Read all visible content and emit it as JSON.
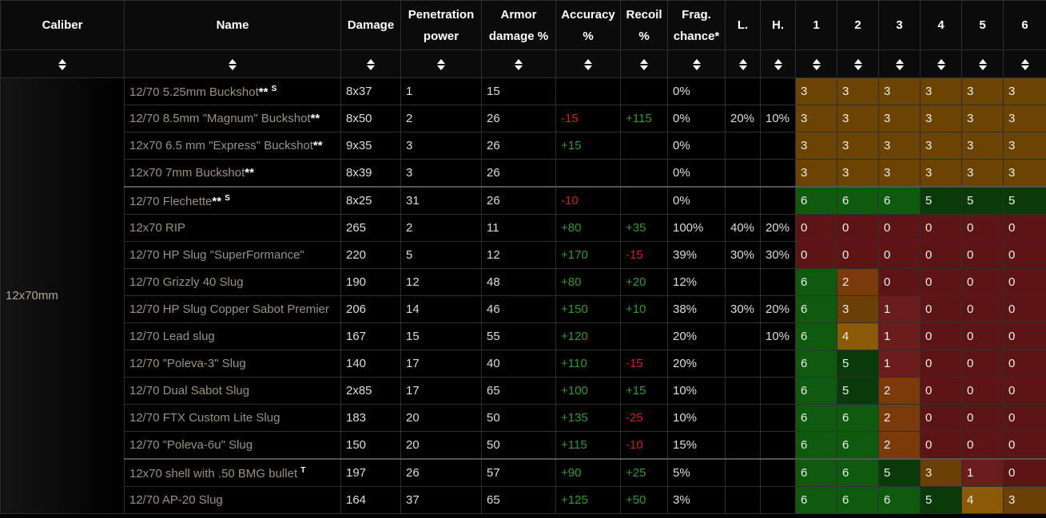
{
  "headers": {
    "caliber": "Caliber",
    "name": "Name",
    "damage": "Damage",
    "penetration": "Penetration power",
    "armor": "Armor damage %",
    "accuracy": "Accuracy %",
    "recoil": "Recoil %",
    "frag": "Frag. chance*",
    "light": "L.",
    "heavy": "H.",
    "c1": "1",
    "c2": "2",
    "c3": "3",
    "c4": "4",
    "c5": "5",
    "c6": "6"
  },
  "caliber": "12x70mm",
  "rows": [
    {
      "name": "12/70 5.25mm Buckshot",
      "mark": "**",
      "sup": "S",
      "damage": "8x37",
      "pen": "1",
      "armor": "15",
      "acc": "",
      "rec": "",
      "frag": "0%",
      "l": "",
      "h": "",
      "cls": [
        "3",
        "3",
        "3",
        "3",
        "3",
        "3"
      ]
    },
    {
      "name": "12/70 8.5mm \"Magnum\" Buckshot",
      "mark": "**",
      "sup": "",
      "damage": "8x50",
      "pen": "2",
      "armor": "26",
      "acc": "-15",
      "rec": "+115",
      "frag": "0%",
      "l": "20%",
      "h": "10%",
      "cls": [
        "3",
        "3",
        "3",
        "3",
        "3",
        "3"
      ]
    },
    {
      "name": "12x70 6.5 mm \"Express\" Buckshot",
      "mark": "**",
      "sup": "",
      "damage": "9x35",
      "pen": "3",
      "armor": "26",
      "acc": "+15",
      "rec": "",
      "frag": "0%",
      "l": "",
      "h": "",
      "cls": [
        "3",
        "3",
        "3",
        "3",
        "3",
        "3"
      ]
    },
    {
      "name": "12x70 7mm Buckshot",
      "mark": "**",
      "sup": "",
      "damage": "8x39",
      "pen": "3",
      "armor": "26",
      "acc": "",
      "rec": "",
      "frag": "0%",
      "l": "",
      "h": "",
      "cls": [
        "3",
        "3",
        "3",
        "3",
        "3",
        "3"
      ]
    },
    {
      "name": "12/70 Flechette",
      "mark": "**",
      "sup": "S",
      "damage": "8x25",
      "pen": "31",
      "armor": "26",
      "acc": "-10",
      "rec": "",
      "frag": "0%",
      "l": "",
      "h": "",
      "cls": [
        "6",
        "6",
        "6",
        "5",
        "5",
        "5"
      ]
    },
    {
      "name": "12x70 RIP",
      "mark": "",
      "sup": "",
      "damage": "265",
      "pen": "2",
      "armor": "11",
      "acc": "+80",
      "rec": "+35",
      "frag": "100%",
      "l": "40%",
      "h": "20%",
      "cls": [
        "0",
        "0",
        "0",
        "0",
        "0",
        "0"
      ]
    },
    {
      "name": "12/70 HP Slug \"SuperFormance\"",
      "mark": "",
      "sup": "",
      "damage": "220",
      "pen": "5",
      "armor": "12",
      "acc": "+170",
      "rec": "-15",
      "frag": "39%",
      "l": "30%",
      "h": "30%",
      "cls": [
        "0",
        "0",
        "0",
        "0",
        "0",
        "0"
      ]
    },
    {
      "name": "12/70 Grizzly 40 Slug",
      "mark": "",
      "sup": "",
      "damage": "190",
      "pen": "12",
      "armor": "48",
      "acc": "+80",
      "rec": "+20",
      "frag": "12%",
      "l": "",
      "h": "",
      "cls": [
        "6",
        "2",
        "0",
        "0",
        "0",
        "0"
      ]
    },
    {
      "name": "12/70 HP Slug Copper Sabot Premier",
      "mark": "",
      "sup": "",
      "damage": "206",
      "pen": "14",
      "armor": "46",
      "acc": "+150",
      "rec": "+10",
      "frag": "38%",
      "l": "30%",
      "h": "20%",
      "cls": [
        "6",
        "3",
        "1",
        "0",
        "0",
        "0"
      ]
    },
    {
      "name": "12/70 Lead slug",
      "mark": "",
      "sup": "",
      "damage": "167",
      "pen": "15",
      "armor": "55",
      "acc": "+120",
      "rec": "",
      "frag": "20%",
      "l": "",
      "h": "10%",
      "cls": [
        "6",
        "4",
        "1",
        "0",
        "0",
        "0"
      ]
    },
    {
      "name": "12/70 \"Poleva-3\" Slug",
      "mark": "",
      "sup": "",
      "damage": "140",
      "pen": "17",
      "armor": "40",
      "acc": "+110",
      "rec": "-15",
      "frag": "20%",
      "l": "",
      "h": "",
      "cls": [
        "6",
        "5",
        "1",
        "0",
        "0",
        "0"
      ]
    },
    {
      "name": "12/70 Dual Sabot Slug",
      "mark": "",
      "sup": "",
      "damage": "2x85",
      "pen": "17",
      "armor": "65",
      "acc": "+100",
      "rec": "+15",
      "frag": "10%",
      "l": "",
      "h": "",
      "cls": [
        "6",
        "5",
        "2",
        "0",
        "0",
        "0"
      ]
    },
    {
      "name": "12/70 FTX Custom Lite Slug",
      "mark": "",
      "sup": "",
      "damage": "183",
      "pen": "20",
      "armor": "50",
      "acc": "+135",
      "rec": "-25",
      "frag": "10%",
      "l": "",
      "h": "",
      "cls": [
        "6",
        "6",
        "2",
        "0",
        "0",
        "0"
      ]
    },
    {
      "name": "12/70 \"Poleva-6u\" Slug",
      "mark": "",
      "sup": "",
      "damage": "150",
      "pen": "20",
      "armor": "50",
      "acc": "+115",
      "rec": "-10",
      "frag": "15%",
      "l": "",
      "h": "",
      "cls": [
        "6",
        "6",
        "2",
        "0",
        "0",
        "0"
      ]
    },
    {
      "name": "12x70 shell with .50 BMG bullet",
      "mark": "",
      "sup": "T",
      "damage": "197",
      "pen": "26",
      "armor": "57",
      "acc": "+90",
      "rec": "+25",
      "frag": "5%",
      "l": "",
      "h": "",
      "cls": [
        "6",
        "6",
        "5",
        "3",
        "1",
        "0"
      ]
    },
    {
      "name": "12/70 AP-20 Slug",
      "mark": "",
      "sup": "",
      "damage": "164",
      "pen": "37",
      "armor": "65",
      "acc": "+125",
      "rec": "+50",
      "frag": "3%",
      "l": "",
      "h": "",
      "cls": [
        "6",
        "6",
        "6",
        "5",
        "4",
        "3"
      ]
    }
  ],
  "colors": {
    "positive": "#2e9a2e",
    "negative": "#d21f1f"
  }
}
